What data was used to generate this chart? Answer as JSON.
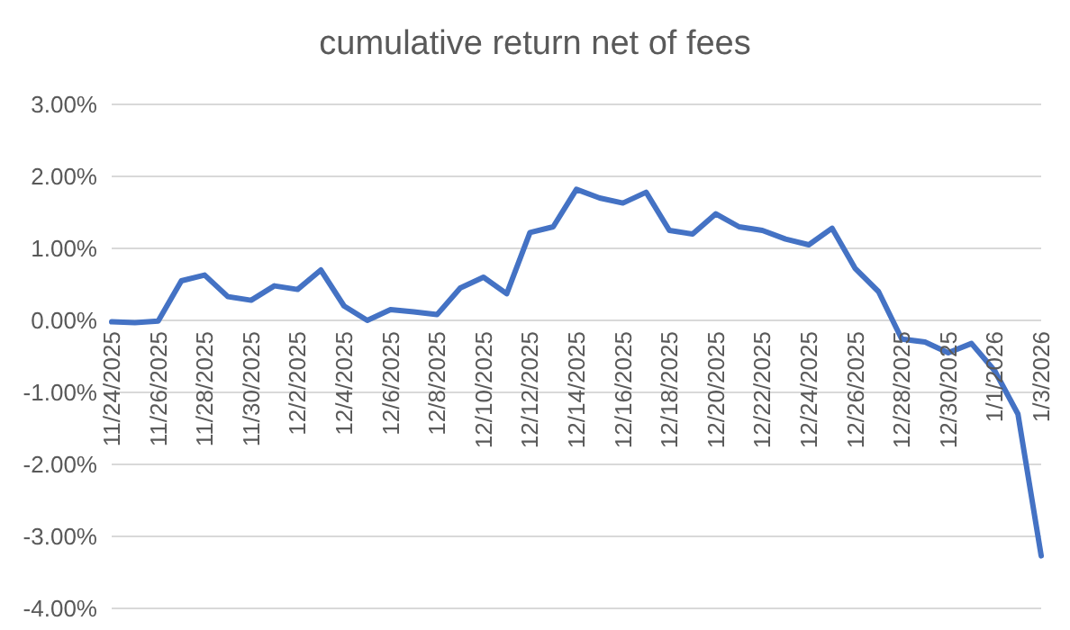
{
  "chart_data": {
    "type": "line",
    "title": "cumulative return net of fees",
    "categories": [
      "11/24/2025",
      null,
      "11/26/2025",
      null,
      "11/28/2025",
      null,
      "11/30/2025",
      null,
      "12/2/2025",
      null,
      "12/4/2025",
      null,
      "12/6/2025",
      null,
      "12/8/2025",
      null,
      "12/10/2025",
      null,
      "12/12/2025",
      null,
      "12/14/2025",
      null,
      "12/16/2025",
      null,
      "12/18/2025",
      null,
      "12/20/2025",
      null,
      "12/22/2025",
      null,
      "12/24/2025",
      null,
      "12/26/2025",
      null,
      "12/28/2025",
      null,
      "12/30/2025",
      null,
      "1/1/2026",
      null,
      "1/3/2026"
    ],
    "series": [
      {
        "color": "#4472c4",
        "values": [
          -0.02,
          -0.03,
          -0.01,
          0.55,
          0.63,
          0.33,
          0.28,
          0.48,
          0.43,
          0.7,
          0.2,
          0.0,
          0.15,
          0.12,
          0.08,
          0.45,
          0.6,
          0.37,
          1.22,
          1.3,
          1.82,
          1.7,
          1.63,
          1.78,
          1.25,
          1.2,
          1.48,
          1.3,
          1.25,
          1.13,
          1.05,
          1.28,
          0.72,
          0.4,
          -0.26,
          -0.3,
          -0.45,
          -0.32,
          -0.7,
          -1.3,
          -3.27
        ]
      }
    ],
    "ylim": [
      -4,
      3
    ],
    "yticks": [
      {
        "value": -4,
        "label": "-4.00%"
      },
      {
        "value": -3,
        "label": "-3.00%"
      },
      {
        "value": -2,
        "label": "-2.00%"
      },
      {
        "value": -1,
        "label": "-1.00%"
      },
      {
        "value": 0,
        "label": "0.00%"
      },
      {
        "value": 1,
        "label": "1.00%"
      },
      {
        "value": 2,
        "label": "2.00%"
      },
      {
        "value": 3,
        "label": "3.00%"
      }
    ],
    "grid": "y",
    "marker": "none",
    "line_style": "solid"
  }
}
